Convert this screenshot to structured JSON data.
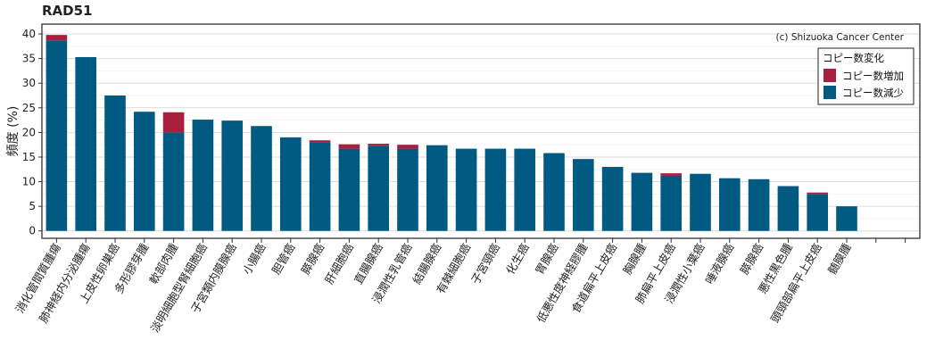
{
  "chart_data": {
    "type": "bar",
    "title": "RAD51",
    "ylabel": "頻度 (%)",
    "xlabel": "",
    "ylim": [
      -1.5,
      42
    ],
    "yticks": [
      0,
      5,
      10,
      15,
      20,
      25,
      30,
      35,
      40
    ],
    "grid": "horizontal",
    "stacked": true,
    "annotation": "(c) Shizuoka Cancer Center",
    "legend": {
      "title": "コピー数変化",
      "position": "top-right"
    },
    "categories": [
      "消化管間質腫瘍",
      "肺神経内分泌腫瘍",
      "上皮性卵巣癌",
      "多形膠芽腫",
      "軟部肉腫",
      "淡明細胞型腎細胞癌",
      "子宮類内膜腺癌",
      "小腸癌",
      "胆管癌",
      "膵腺癌",
      "肝細胞癌",
      "直腸腺癌",
      "浸潤性乳管癌",
      "結腸腺癌",
      "有棘細胞癌",
      "子宮頸癌",
      "化生癌",
      "胃腺癌",
      "低悪性度神経膠腫",
      "食道扁平上皮癌",
      "胸腺腫",
      "肺扁平上皮癌",
      "浸潤性小葉癌",
      "唾液腺癌",
      "膵腺癌",
      "悪性黒色腫",
      "頭頸部扁平上皮癌",
      "髄膜腫",
      "",
      ""
    ],
    "series": [
      {
        "name": "コピー数減少",
        "color": "#005a82",
        "values": [
          38.7,
          35.3,
          27.5,
          24.2,
          20.0,
          22.6,
          22.4,
          21.3,
          19.0,
          18.0,
          16.7,
          17.3,
          16.7,
          17.4,
          16.7,
          16.7,
          16.7,
          15.8,
          14.6,
          13.0,
          11.8,
          11.2,
          11.6,
          10.7,
          10.5,
          9.1,
          7.5,
          5.0,
          0,
          0
        ]
      },
      {
        "name": "コピー数増加",
        "color": "#a8203c",
        "values": [
          1.1,
          0,
          0,
          0,
          4.1,
          0,
          0,
          0,
          0,
          0.4,
          0.9,
          0.4,
          0.8,
          0,
          0,
          0,
          0,
          0,
          0,
          0,
          0,
          0.5,
          0,
          0,
          0,
          0,
          0.3,
          0,
          0,
          0
        ]
      }
    ]
  }
}
